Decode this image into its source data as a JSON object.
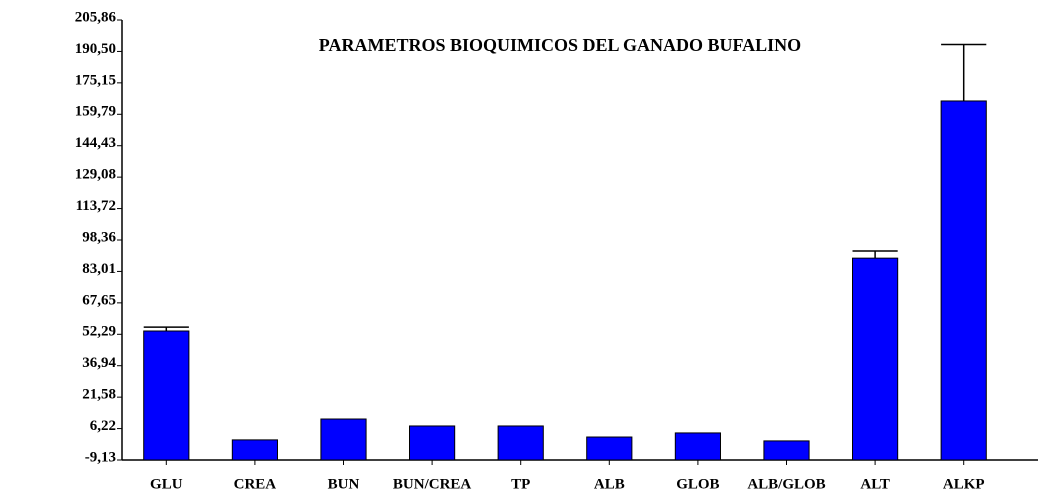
{
  "chart_data": {
    "type": "bar",
    "title": "PARAMETROS BIOQUIMICOS DEL GANADO BUFALINO",
    "categories": [
      "GLU",
      "CREA",
      "BUN",
      "BUN/CREA",
      "TP",
      "ALB",
      "GLOB",
      "ALB/GLOB",
      "ALT",
      "ALKP"
    ],
    "values": [
      53.9,
      0.7,
      10.9,
      7.5,
      7.5,
      2.1,
      4.1,
      0.2,
      89.5,
      166.3
    ],
    "errors": [
      1.9,
      null,
      null,
      null,
      null,
      null,
      null,
      null,
      3.5,
      27.6
    ],
    "color": "#0000ff",
    "ylim": [
      -9.13,
      205.86
    ],
    "yticks": [
      {
        "value": -9.13,
        "label": "-9,13"
      },
      {
        "value": 6.22,
        "label": "6,22"
      },
      {
        "value": 21.58,
        "label": "21,58"
      },
      {
        "value": 36.94,
        "label": "36,94"
      },
      {
        "value": 52.29,
        "label": "52,29"
      },
      {
        "value": 67.65,
        "label": "67,65"
      },
      {
        "value": 83.01,
        "label": "83,01"
      },
      {
        "value": 98.36,
        "label": "98,36"
      },
      {
        "value": 113.72,
        "label": "113,72"
      },
      {
        "value": 129.08,
        "label": "129,08"
      },
      {
        "value": 144.43,
        "label": "144,43"
      },
      {
        "value": 159.79,
        "label": "159,79"
      },
      {
        "value": 175.15,
        "label": "175,15"
      },
      {
        "value": 190.5,
        "label": "190,50"
      },
      {
        "value": 205.86,
        "label": "205,86"
      }
    ],
    "grid": false
  }
}
